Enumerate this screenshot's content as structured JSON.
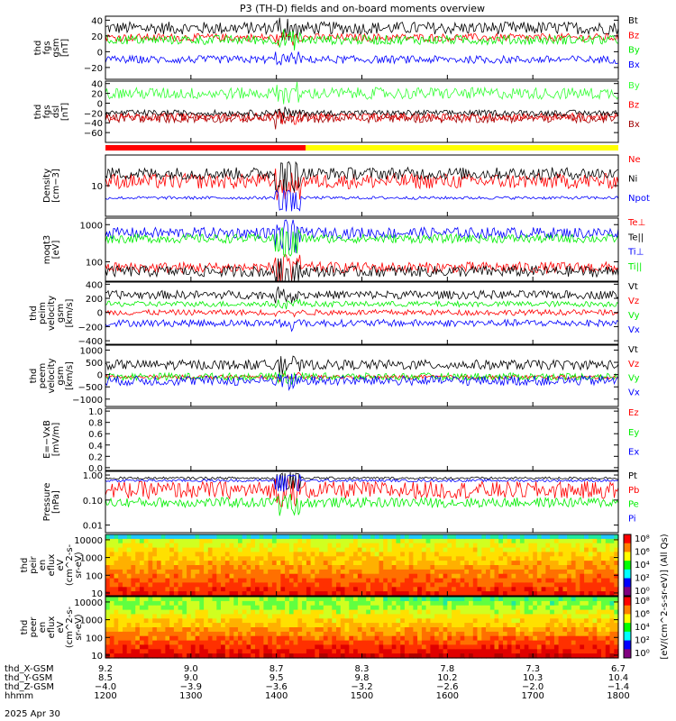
{
  "title": "P3 (TH-D) fields and on-board moments overview",
  "date": "2025 Apr 30",
  "x_axis": {
    "rows": [
      {
        "label": "thd_X-GSM",
        "values": [
          "9.2",
          "9.0",
          "8.7",
          "8.3",
          "7.8",
          "7.3",
          "6.7"
        ]
      },
      {
        "label": "thd_Y-GSM",
        "values": [
          "8.5",
          "9.0",
          "9.5",
          "9.8",
          "10.2",
          "10.3",
          "10.4"
        ]
      },
      {
        "label": "thd_Z-GSM",
        "values": [
          "-4.0",
          "-3.9",
          "-3.6",
          "-3.2",
          "-2.6",
          "-2.0",
          "-1.4"
        ]
      },
      {
        "label": "hhmm",
        "values": [
          "1200",
          "1300",
          "1400",
          "1500",
          "1600",
          "1700",
          "1800"
        ]
      }
    ]
  },
  "colors": {
    "black": "#000000",
    "red": "#ff0000",
    "green": "#00ee00",
    "blue": "#0000ff",
    "bright_green": "#33ff33",
    "dark_red": "#a00000",
    "yellow": "#ffff00"
  },
  "chart_data": [
    {
      "type": "line",
      "ylabel": [
        "thd",
        "fgs",
        "gsm",
        "[nT]"
      ],
      "ylim": [
        -35,
        45
      ],
      "yticks": [
        "40",
        "20",
        "0",
        "−20"
      ],
      "series": [
        {
          "name": "Bt",
          "color": "#000000",
          "base": 30,
          "amp": 8
        },
        {
          "name": "Bz",
          "color": "#ff0000",
          "base": 18,
          "amp": 5
        },
        {
          "name": "By",
          "color": "#00ee00",
          "base": 15,
          "amp": 6
        },
        {
          "name": "Bx",
          "color": "#0000ff",
          "base": -10,
          "amp": 5
        }
      ]
    },
    {
      "type": "line",
      "ylabel": [
        "thd",
        "fgs",
        "dsl",
        "[nT]"
      ],
      "ylim": [
        -80,
        45
      ],
      "yticks": [
        "40",
        "20",
        "0",
        "−20",
        "−40",
        "−60"
      ],
      "series": [
        {
          "name": "By",
          "color": "#33ff33",
          "base": 20,
          "amp": 12
        },
        {
          "name": "Bz",
          "color": "#ff0000",
          "base": -28,
          "amp": 8
        },
        {
          "name": "Bx",
          "color": "#a00000",
          "base": -30,
          "amp": 10
        },
        {
          "name": "",
          "color": "#000000",
          "base": -20,
          "amp": 6
        }
      ]
    },
    {
      "type": "line",
      "ylabel": [
        "Density",
        "[cm−3]"
      ],
      "log": true,
      "ylim": [
        1,
        100
      ],
      "yticks": [
        "10"
      ],
      "series": [
        {
          "name": "Ne",
          "color": "#ff0000",
          "base": 14,
          "amp": 0.25
        },
        {
          "name": "Ni",
          "color": "#000000",
          "base": 25,
          "amp": 0.2
        },
        {
          "name": "Npot",
          "color": "#0000ff",
          "base": 4,
          "amp": 0.05
        }
      ]
    },
    {
      "type": "line",
      "ylabel": [
        "moqt3",
        "[eV]"
      ],
      "log": true,
      "ylim": [
        30,
        1500
      ],
      "yticks": [
        "1000",
        "100"
      ],
      "series": [
        {
          "name": "Te⊥",
          "color": "#ff0000",
          "base": 70,
          "amp": 0.15
        },
        {
          "name": "Te||",
          "color": "#000000",
          "base": 55,
          "amp": 0.15
        },
        {
          "name": "Ti⊥",
          "color": "#0000ff",
          "base": 600,
          "amp": 0.15
        },
        {
          "name": "Ti||",
          "color": "#00ee00",
          "base": 420,
          "amp": 0.12
        }
      ]
    },
    {
      "type": "line",
      "ylabel": [
        "thd",
        "peim",
        "velocity",
        "gsm",
        "[km/s]"
      ],
      "ylim": [
        -450,
        430
      ],
      "yticks": [
        "400",
        "200",
        "0",
        "−200",
        "−400"
      ],
      "series": [
        {
          "name": "Vt",
          "color": "#000000",
          "base": 250,
          "amp": 60
        },
        {
          "name": "Vz",
          "color": "#ff0000",
          "base": 0,
          "amp": 40
        },
        {
          "name": "Vy",
          "color": "#00ee00",
          "base": 120,
          "amp": 40
        },
        {
          "name": "Vx",
          "color": "#0000ff",
          "base": -150,
          "amp": 50
        }
      ]
    },
    {
      "type": "line",
      "ylabel": [
        "thd",
        "peem",
        "velocity",
        "gsm",
        "[km/s]"
      ],
      "ylim": [
        -1300,
        1200
      ],
      "yticks": [
        "1000",
        "500",
        "0",
        "−500",
        "−1000"
      ],
      "series": [
        {
          "name": "Vt",
          "color": "#000000",
          "base": 400,
          "amp": 200
        },
        {
          "name": "Vz",
          "color": "#ff0000",
          "base": -100,
          "amp": 80
        },
        {
          "name": "Vy",
          "color": "#00ee00",
          "base": -80,
          "amp": 150
        },
        {
          "name": "Vx",
          "color": "#0000ff",
          "base": -250,
          "amp": 200
        }
      ]
    },
    {
      "type": "line",
      "ylabel": [
        "E=−VxB",
        "[mV/m]"
      ],
      "ylim": [
        -0.05,
        1.05
      ],
      "yticks": [
        "1.0",
        "0.8",
        "0.6",
        "0.4",
        "0.2",
        "0.0"
      ],
      "series": [
        {
          "name": "Ez",
          "color": "#ff0000",
          "empty": true
        },
        {
          "name": "Ey",
          "color": "#00ee00",
          "empty": true
        },
        {
          "name": "Ex",
          "color": "#0000ff",
          "empty": true
        }
      ]
    },
    {
      "type": "line",
      "ylabel": [
        "Pressure",
        "[nPa]"
      ],
      "log": true,
      "ylim": [
        0.005,
        1.4
      ],
      "yticks": [
        "1.00",
        "0.10",
        "0.01"
      ],
      "series": [
        {
          "name": "Pt",
          "color": "#000000",
          "base": 0.75,
          "amp": 0.05
        },
        {
          "name": "Pb",
          "color": "#ff0000",
          "base": 0.25,
          "amp": 0.35
        },
        {
          "name": "Pe",
          "color": "#00ee00",
          "base": 0.08,
          "amp": 0.2
        },
        {
          "name": "Pi",
          "color": "#0000ff",
          "base": 0.6,
          "amp": 0.05
        }
      ]
    },
    {
      "type": "heatmap",
      "ylabel": [
        "thd",
        "peir",
        "en",
        "eflux",
        "eV",
        "(cm^2-s-",
        "sr-eV)"
      ],
      "log": true,
      "ylim": [
        7,
        20000
      ],
      "yticks": [
        "10000",
        "1000",
        "100",
        "10"
      ],
      "colorbar_ticks": [
        "10⁸",
        "10⁶",
        "10⁴",
        "10²",
        "10⁰"
      ]
    },
    {
      "type": "heatmap",
      "ylabel": [
        "thd",
        "peer",
        "en",
        "eflux",
        "eV",
        "(cm^2-s-",
        "sr-eV)"
      ],
      "log": true,
      "ylim": [
        7,
        20000
      ],
      "yticks": [
        "10000",
        "1000",
        "100",
        "10"
      ],
      "colorbar_ticks": [
        "10⁸",
        "10⁶",
        "10⁴",
        "10²",
        "10⁰"
      ]
    }
  ],
  "colorbar_label": "[eV/(cm^2-s-sr-eV)] (All Qs)"
}
